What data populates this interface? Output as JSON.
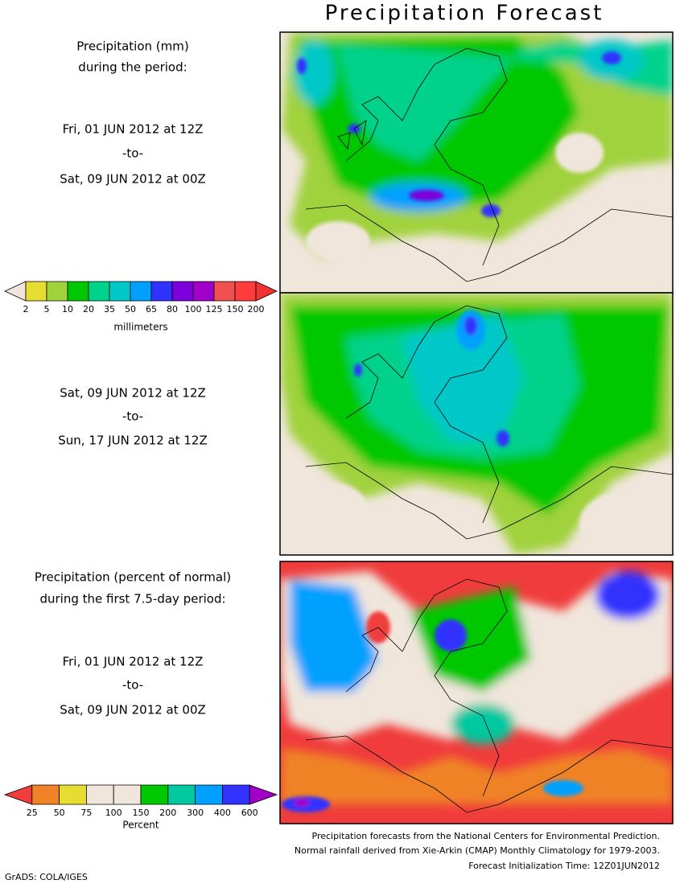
{
  "title": "Precipitation Forecast",
  "panel_1": {
    "heading": [
      "Precipitation (mm)",
      "during the period:"
    ],
    "start": "Fri, 01 JUN 2012 at 12Z",
    "to": "-to-",
    "end": "Sat, 09 JUN 2012 at 00Z"
  },
  "colorbar_mm": {
    "colors": [
      "#f0e6dc",
      "#e6dc32",
      "#a0d23c",
      "#00c800",
      "#00d28c",
      "#00c8c8",
      "#00a0ff",
      "#3232ff",
      "#7d00dc",
      "#a000c8",
      "#f05050",
      "#ff3c3c",
      "#f03232"
    ],
    "labels": [
      "2",
      "5",
      "10",
      "20",
      "35",
      "50",
      "65",
      "80",
      "100",
      "125",
      "150",
      "200"
    ],
    "unit": "millimeters"
  },
  "panel_2": {
    "start": "Sat, 09 JUN 2012 at 12Z",
    "to": "-to-",
    "end": "Sun, 17 JUN 2012 at 12Z"
  },
  "panel_3": {
    "heading": [
      "Precipitation (percent of normal)",
      "during the first 7.5-day period:"
    ],
    "start": "Fri, 01 JUN 2012 at 12Z",
    "to": "-to-",
    "end": "Sat, 09 JUN 2012 at 00Z"
  },
  "colorbar_pct": {
    "colors": [
      "#f03c3c",
      "#f08228",
      "#e6dc32",
      "#f0e6dc",
      "#f0e6dc",
      "#00c800",
      "#00c8a0",
      "#00a0ff",
      "#3232ff",
      "#a000c8"
    ],
    "labels": [
      "25",
      "50",
      "75",
      "100",
      "150",
      "200",
      "300",
      "400",
      "600"
    ],
    "unit": "Percent"
  },
  "footer": [
    "Precipitation forecasts from the National Centers for Environmental Prediction.",
    "Normal rainfall derived from Xie-Arkin (CMAP) Monthly Climatology for 1979-2003.",
    "Forecast Initialization Time: 12Z01JUN2012"
  ],
  "credit": "GrADS: COLA/IGES"
}
